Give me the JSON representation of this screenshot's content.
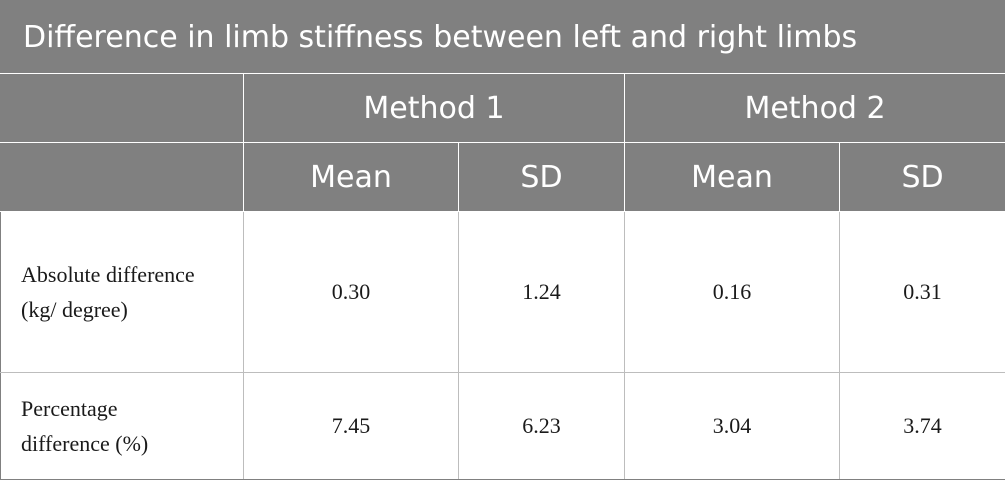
{
  "table": {
    "title": "Difference in limb stiffness between left and right limbs",
    "methods": [
      "Method 1",
      "Method 2"
    ],
    "stats": [
      "Mean",
      "SD",
      "Mean",
      "SD"
    ],
    "rows": [
      {
        "label": "Absolute difference (kg/ degree)",
        "values": [
          "0.30",
          "1.24",
          "0.16",
          "0.31"
        ]
      },
      {
        "label": "Percentage difference (%)",
        "values": [
          "7.45",
          "6.23",
          "3.04",
          "3.74"
        ]
      }
    ]
  },
  "colors": {
    "header_background": "#808080",
    "header_text": "#ffffff",
    "body_text": "#1a1a1a",
    "grid_line": "#bdbdbd"
  }
}
